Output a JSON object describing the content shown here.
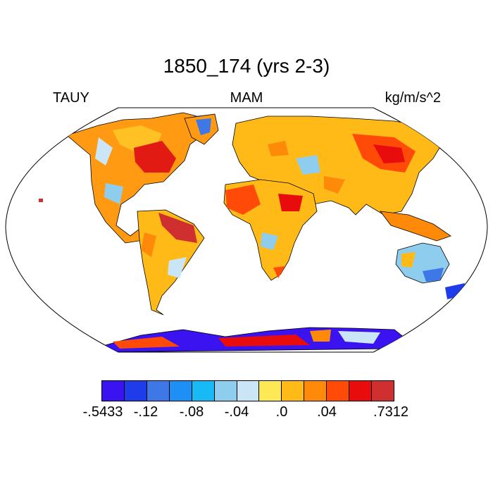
{
  "title": "1850_174 (yrs 2-3)",
  "labels": {
    "left": "TAUY",
    "center": "MAM",
    "right": "kg/m/s^2"
  },
  "colorbar": {
    "colors": [
      "#3b12f0",
      "#1f3cea",
      "#3d78e6",
      "#1e90f5",
      "#18baf5",
      "#8fcdef",
      "#cae6f6",
      "#fde956",
      "#ffba17",
      "#ff8a0a",
      "#ff4a08",
      "#e80c0c",
      "#cf2f2f"
    ],
    "labels": [
      "-.5433",
      "-.12",
      "-.08",
      "-.04",
      ".0",
      ".04",
      ".7312"
    ]
  }
}
